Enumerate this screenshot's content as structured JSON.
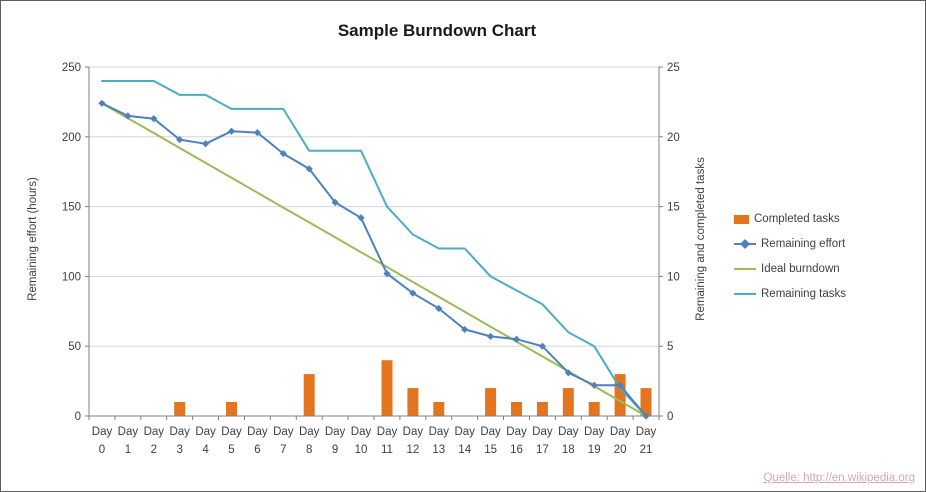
{
  "footer": "Quelle: http://en.wikipedia.org",
  "footer_color": "#d3a5bc",
  "chart_data": {
    "type": "combo",
    "title": "Sample Burndown Chart",
    "categories": [
      "Day 0",
      "Day 1",
      "Day 2",
      "Day 3",
      "Day 4",
      "Day 5",
      "Day 6",
      "Day 7",
      "Day 8",
      "Day 9",
      "Day 10",
      "Day 11",
      "Day 12",
      "Day 13",
      "Day 14",
      "Day 15",
      "Day 16",
      "Day 17",
      "Day 18",
      "Day 19",
      "Day 20",
      "Day 21"
    ],
    "left_axis": {
      "label": "Remaining effort (hours)",
      "min": 0,
      "max": 250,
      "step": 50
    },
    "right_axis": {
      "label": "Remaining and completed tasks",
      "min": 0,
      "max": 25,
      "step": 5
    },
    "grid": true,
    "legend_position": "right",
    "colors": {
      "grid": "#d6d6d6",
      "axis": "#808080",
      "text": "#3f3f3f"
    },
    "series": [
      {
        "name": "Completed tasks",
        "type": "bar",
        "axis": "right",
        "color": "#e2751d",
        "values": [
          0,
          0,
          0,
          1,
          0,
          1,
          0,
          0,
          3,
          0,
          0,
          4,
          2,
          1,
          0,
          2,
          1,
          1,
          2,
          1,
          3,
          2
        ]
      },
      {
        "name": "Remaining effort",
        "type": "line",
        "axis": "left",
        "color": "#4f81bd",
        "marker": "diamond",
        "values": [
          224,
          215,
          213,
          198,
          195,
          204,
          203,
          188,
          177,
          153,
          142,
          102,
          88,
          77,
          62,
          57,
          55,
          50,
          31,
          22,
          22,
          0
        ]
      },
      {
        "name": "Ideal burndown",
        "type": "line",
        "axis": "left",
        "color": "#9bbb59",
        "values": [
          224,
          213.3,
          202.7,
          192,
          181.3,
          170.7,
          160,
          149.3,
          138.7,
          128,
          117.3,
          106.7,
          96,
          85.3,
          74.7,
          64,
          53.3,
          42.7,
          32,
          21.3,
          10.7,
          0
        ]
      },
      {
        "name": "Remaining tasks",
        "type": "line",
        "axis": "right",
        "color": "#4bacc6",
        "values": [
          24,
          24,
          24,
          23,
          23,
          22,
          22,
          22,
          19,
          19,
          19,
          15,
          13,
          12,
          12,
          10,
          9,
          8,
          6,
          5,
          2,
          0
        ]
      }
    ]
  }
}
